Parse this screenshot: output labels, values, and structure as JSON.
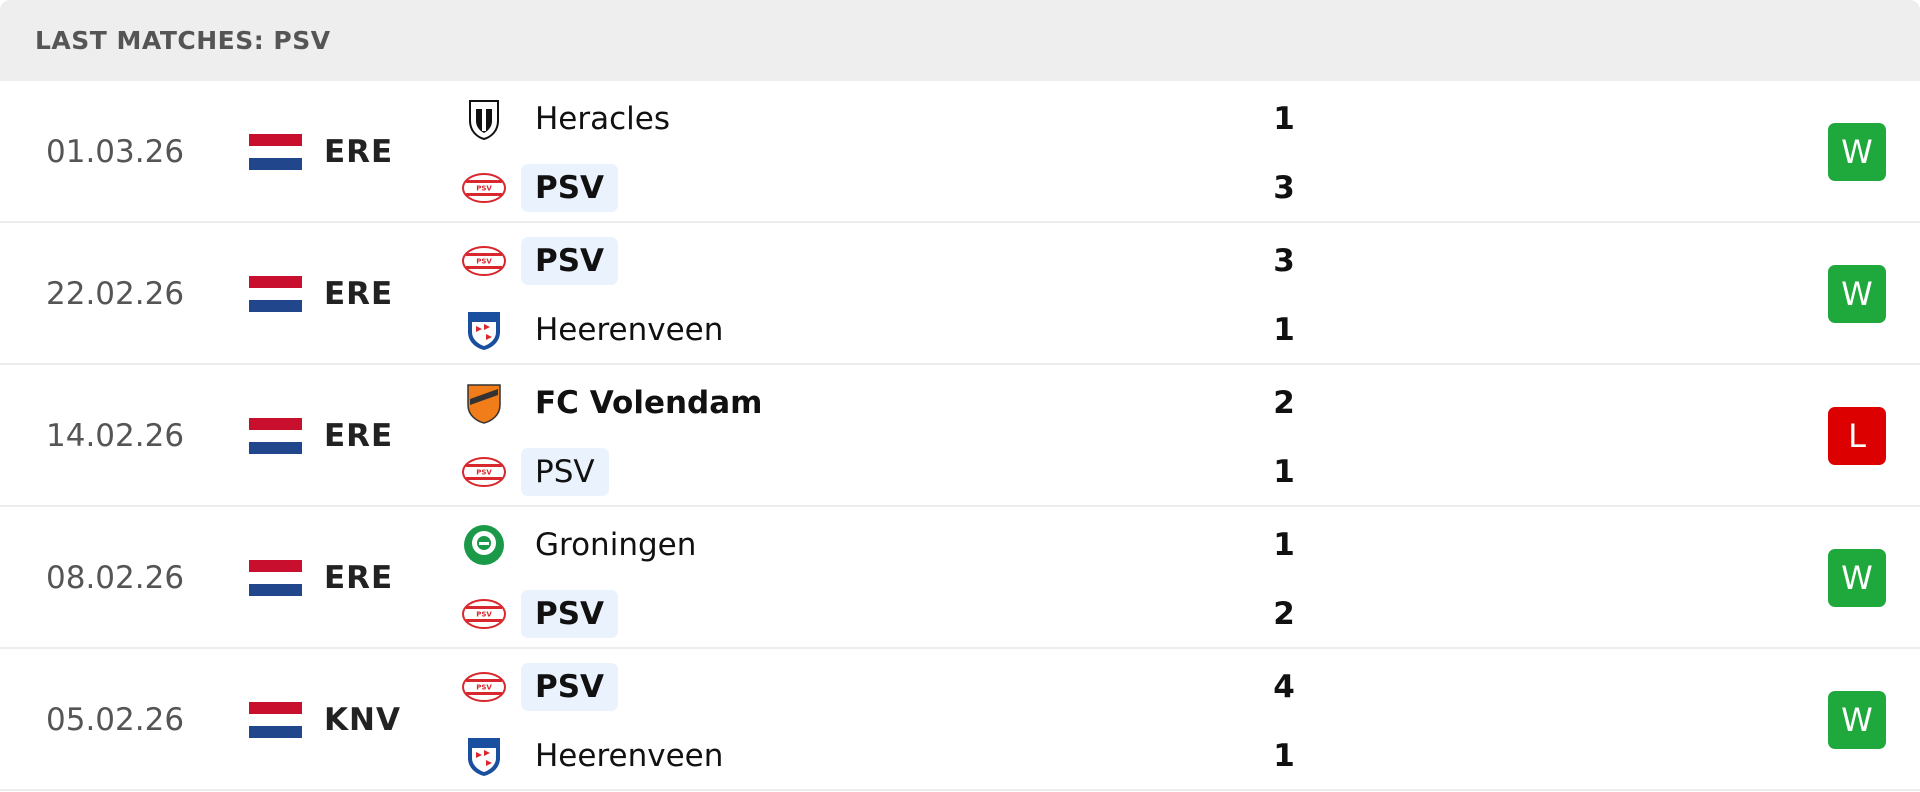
{
  "header": {
    "title": "LAST MATCHES: PSV"
  },
  "matches": [
    {
      "date": "01.03.26",
      "league": "ERE",
      "home": {
        "name": "Heracles",
        "score": 1
      },
      "away": {
        "name": "PSV",
        "score": 3
      },
      "result": "W"
    },
    {
      "date": "22.02.26",
      "league": "ERE",
      "home": {
        "name": "PSV",
        "score": 3
      },
      "away": {
        "name": "Heerenveen",
        "score": 1
      },
      "result": "W"
    },
    {
      "date": "14.02.26",
      "league": "ERE",
      "home": {
        "name": "FC Volendam",
        "score": 2
      },
      "away": {
        "name": "PSV",
        "score": 1
      },
      "result": "L"
    },
    {
      "date": "08.02.26",
      "league": "ERE",
      "home": {
        "name": "Groningen",
        "score": 1
      },
      "away": {
        "name": "PSV",
        "score": 2
      },
      "result": "W"
    },
    {
      "date": "05.02.26",
      "league": "KNV",
      "home": {
        "name": "PSV",
        "score": 4
      },
      "away": {
        "name": "Heerenveen",
        "score": 1
      },
      "result": "W"
    }
  ]
}
